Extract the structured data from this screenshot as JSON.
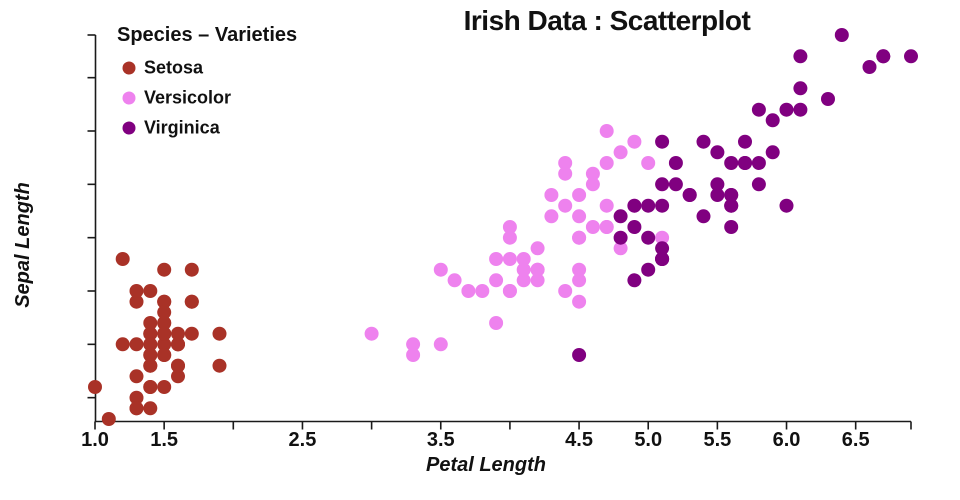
{
  "title": "Irish Data : Scatterplot",
  "chart_data": {
    "type": "scatter",
    "title": "Irish Data : Scatterplot",
    "xlabel": "Petal Length",
    "ylabel": "Sepal Length",
    "legend_title": "Species – Varieties",
    "legend_title_color": "#018A08",
    "legend_position": "top-left",
    "grid": false,
    "xlim": [
      1.0,
      6.9
    ],
    "ylim": [
      4.3,
      7.9
    ],
    "x_ticks": [
      {
        "v": 1.0,
        "label": "1.0"
      },
      {
        "v": 1.5,
        "label": "1.5"
      },
      {
        "v": 2.0,
        "label": ""
      },
      {
        "v": 2.5,
        "label": "2.5"
      },
      {
        "v": 3.0,
        "label": ""
      },
      {
        "v": 3.5,
        "label": "3.5"
      },
      {
        "v": 4.0,
        "label": ""
      },
      {
        "v": 4.5,
        "label": "4.5"
      },
      {
        "v": 5.0,
        "label": "5.0"
      },
      {
        "v": 5.5,
        "label": "5.5"
      },
      {
        "v": 6.0,
        "label": "6.0"
      },
      {
        "v": 6.5,
        "label": "6.5"
      },
      {
        "v": 6.9,
        "label": ""
      }
    ],
    "y_ticks": [
      4.5,
      5.0,
      5.5,
      6.0,
      6.5,
      7.0,
      7.5,
      7.9
    ],
    "series": [
      {
        "name": "Setosa",
        "color": "#A93227",
        "points": [
          [
            1.4,
            5.1
          ],
          [
            1.4,
            4.9
          ],
          [
            1.3,
            4.7
          ],
          [
            1.5,
            4.6
          ],
          [
            1.4,
            5.0
          ],
          [
            1.7,
            5.4
          ],
          [
            1.4,
            4.6
          ],
          [
            1.5,
            5.0
          ],
          [
            1.4,
            4.4
          ],
          [
            1.5,
            4.9
          ],
          [
            1.5,
            5.4
          ],
          [
            1.6,
            4.8
          ],
          [
            1.4,
            4.8
          ],
          [
            1.1,
            4.3
          ],
          [
            1.2,
            5.8
          ],
          [
            1.5,
            5.7
          ],
          [
            1.3,
            5.4
          ],
          [
            1.4,
            5.1
          ],
          [
            1.7,
            5.7
          ],
          [
            1.5,
            5.1
          ],
          [
            1.7,
            5.4
          ],
          [
            1.5,
            5.1
          ],
          [
            1.0,
            4.6
          ],
          [
            1.7,
            5.1
          ],
          [
            1.9,
            4.8
          ],
          [
            1.6,
            5.0
          ],
          [
            1.6,
            5.0
          ],
          [
            1.5,
            5.2
          ],
          [
            1.4,
            5.2
          ],
          [
            1.6,
            4.7
          ],
          [
            1.6,
            4.8
          ],
          [
            1.5,
            5.4
          ],
          [
            1.5,
            5.2
          ],
          [
            1.4,
            5.5
          ],
          [
            1.5,
            4.9
          ],
          [
            1.2,
            5.0
          ],
          [
            1.3,
            5.5
          ],
          [
            1.4,
            4.9
          ],
          [
            1.3,
            4.4
          ],
          [
            1.5,
            5.1
          ],
          [
            1.3,
            5.0
          ],
          [
            1.3,
            4.5
          ],
          [
            1.3,
            4.4
          ],
          [
            1.6,
            5.0
          ],
          [
            1.9,
            5.1
          ],
          [
            1.4,
            4.8
          ],
          [
            1.6,
            5.1
          ],
          [
            1.4,
            4.6
          ],
          [
            1.5,
            5.3
          ],
          [
            1.4,
            5.0
          ]
        ]
      },
      {
        "name": "Versicolor",
        "color": "#EE82EE",
        "points": [
          [
            4.7,
            7.0
          ],
          [
            4.5,
            6.4
          ],
          [
            4.9,
            6.9
          ],
          [
            4.0,
            5.5
          ],
          [
            4.6,
            6.5
          ],
          [
            4.5,
            5.7
          ],
          [
            4.7,
            6.3
          ],
          [
            3.3,
            4.9
          ],
          [
            4.6,
            6.6
          ],
          [
            3.9,
            5.2
          ],
          [
            3.5,
            5.0
          ],
          [
            4.2,
            5.9
          ],
          [
            4.0,
            6.0
          ],
          [
            4.7,
            6.1
          ],
          [
            3.6,
            5.6
          ],
          [
            4.4,
            6.7
          ],
          [
            4.5,
            5.6
          ],
          [
            4.1,
            5.8
          ],
          [
            4.5,
            6.2
          ],
          [
            3.9,
            5.6
          ],
          [
            4.8,
            5.9
          ],
          [
            4.0,
            6.1
          ],
          [
            4.9,
            6.3
          ],
          [
            4.7,
            6.1
          ],
          [
            4.3,
            6.4
          ],
          [
            4.4,
            6.6
          ],
          [
            4.8,
            6.8
          ],
          [
            5.0,
            6.7
          ],
          [
            4.5,
            6.0
          ],
          [
            3.5,
            5.7
          ],
          [
            3.8,
            5.5
          ],
          [
            3.7,
            5.5
          ],
          [
            3.9,
            5.8
          ],
          [
            5.1,
            6.0
          ],
          [
            4.5,
            5.4
          ],
          [
            4.5,
            6.0
          ],
          [
            4.7,
            6.7
          ],
          [
            4.4,
            6.3
          ],
          [
            4.1,
            5.6
          ],
          [
            4.0,
            5.5
          ],
          [
            4.4,
            5.5
          ],
          [
            4.6,
            6.1
          ],
          [
            4.0,
            5.8
          ],
          [
            3.3,
            5.0
          ],
          [
            4.2,
            5.6
          ],
          [
            4.2,
            5.7
          ],
          [
            4.2,
            5.7
          ],
          [
            4.3,
            6.2
          ],
          [
            3.0,
            5.1
          ],
          [
            4.1,
            5.7
          ]
        ]
      },
      {
        "name": "Virginica",
        "color": "#800080",
        "points": [
          [
            6.0,
            6.3
          ],
          [
            5.1,
            5.8
          ],
          [
            5.9,
            7.1
          ],
          [
            5.6,
            6.3
          ],
          [
            5.8,
            6.5
          ],
          [
            6.6,
            7.6
          ],
          [
            4.5,
            4.9
          ],
          [
            6.3,
            7.3
          ],
          [
            5.8,
            6.7
          ],
          [
            6.1,
            7.2
          ],
          [
            5.1,
            6.5
          ],
          [
            5.3,
            6.4
          ],
          [
            5.5,
            6.8
          ],
          [
            5.0,
            5.7
          ],
          [
            5.1,
            5.8
          ],
          [
            5.3,
            6.4
          ],
          [
            5.5,
            6.5
          ],
          [
            6.7,
            7.7
          ],
          [
            6.9,
            7.7
          ],
          [
            5.0,
            6.0
          ],
          [
            5.7,
            6.9
          ],
          [
            4.9,
            5.6
          ],
          [
            6.7,
            7.7
          ],
          [
            4.9,
            6.3
          ],
          [
            5.7,
            6.7
          ],
          [
            6.0,
            7.2
          ],
          [
            4.8,
            6.2
          ],
          [
            4.9,
            6.1
          ],
          [
            5.6,
            6.4
          ],
          [
            5.8,
            7.2
          ],
          [
            6.1,
            7.4
          ],
          [
            6.4,
            7.9
          ],
          [
            5.6,
            6.4
          ],
          [
            5.1,
            6.3
          ],
          [
            5.6,
            6.1
          ],
          [
            6.1,
            7.7
          ],
          [
            5.6,
            6.3
          ],
          [
            5.5,
            6.4
          ],
          [
            4.8,
            6.0
          ],
          [
            5.4,
            6.9
          ],
          [
            5.6,
            6.7
          ],
          [
            5.1,
            6.9
          ],
          [
            5.1,
            5.8
          ],
          [
            5.9,
            6.8
          ],
          [
            5.7,
            6.7
          ],
          [
            5.2,
            6.7
          ],
          [
            5.0,
            6.3
          ],
          [
            5.2,
            6.5
          ],
          [
            5.4,
            6.2
          ],
          [
            5.1,
            5.9
          ]
        ]
      }
    ]
  }
}
